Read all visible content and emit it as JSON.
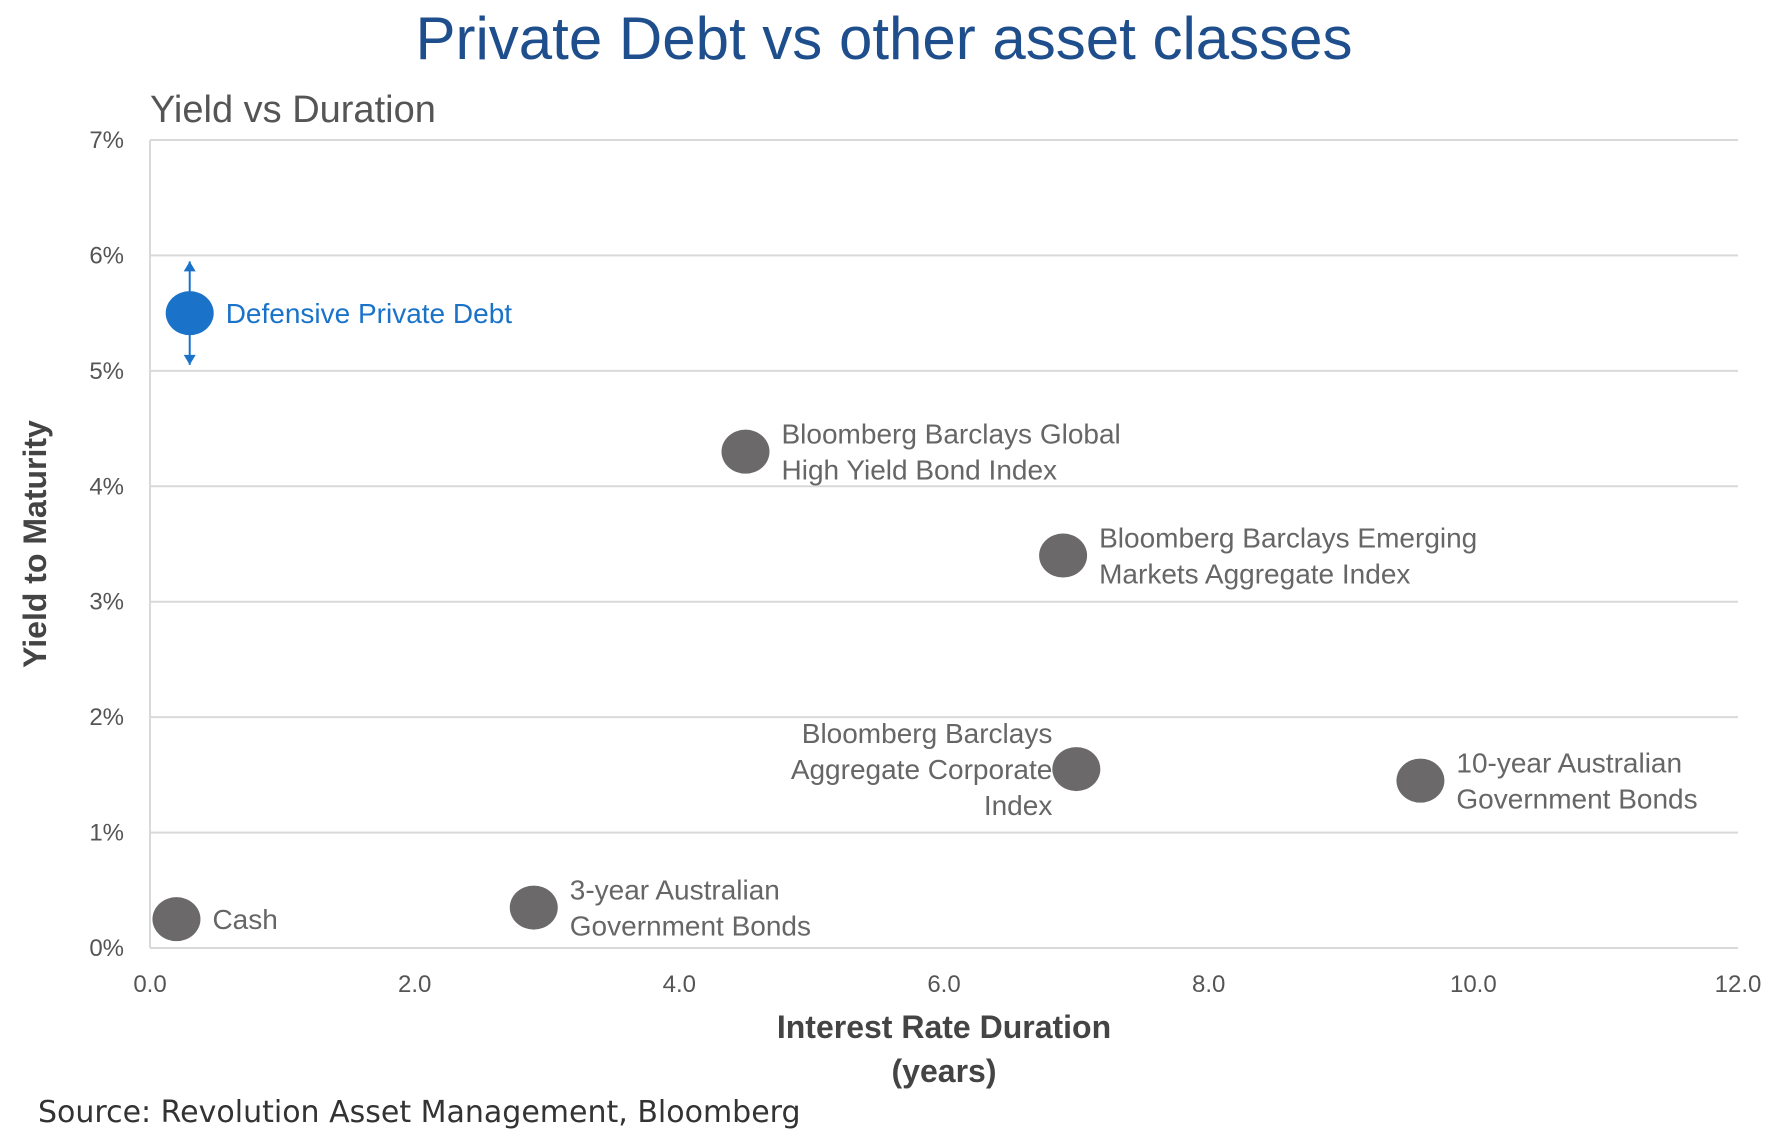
{
  "header": {
    "title": "Private Debt vs other asset classes"
  },
  "footer": {
    "source": "Source: Revolution Asset Management, Bloomberg"
  },
  "chart_data": {
    "type": "scatter",
    "title": "Private Debt vs other asset classes",
    "subtitle": "Yield vs Duration",
    "xlabel": [
      "Interest Rate Duration",
      "(years)"
    ],
    "ylabel": "Yield to Maturity",
    "xlim": [
      0,
      12
    ],
    "ylim": [
      0,
      7
    ],
    "xticks": [
      0,
      2,
      4,
      6,
      8,
      10,
      12
    ],
    "xtick_labels": [
      "0.0",
      "2.0",
      "4.0",
      "6.0",
      "8.0",
      "10.0",
      "12.0"
    ],
    "yticks": [
      0,
      1,
      2,
      3,
      4,
      5,
      6,
      7
    ],
    "ytick_labels": [
      "0%",
      "1%",
      "2%",
      "3%",
      "4%",
      "5%",
      "6%",
      "7%"
    ],
    "grid": "horizontal",
    "legend": "none",
    "colors": {
      "highlight": "#1a73c8",
      "default": "#6b6969",
      "grid": "#d9d9d9"
    },
    "points": [
      {
        "name": "defensive-private-debt",
        "label": [
          "Defensive Private Debt"
        ],
        "x": 0.3,
        "y": 5.5,
        "highlight": true,
        "range": [
          5.0,
          6.0
        ]
      },
      {
        "name": "global-high-yield",
        "label": [
          "Bloomberg Barclays Global",
          "High Yield Bond Index"
        ],
        "x": 4.5,
        "y": 4.3
      },
      {
        "name": "emerging-markets",
        "label": [
          "Bloomberg Barclays Emerging",
          "Markets Aggregate Index"
        ],
        "x": 6.9,
        "y": 3.4
      },
      {
        "name": "aggregate-corporate",
        "label": [
          "Bloomberg Barclays",
          "Aggregate Corporate",
          "Index"
        ],
        "x": 7.0,
        "y": 1.55,
        "label_side": "left"
      },
      {
        "name": "10yr-aus-gov",
        "label": [
          "10-year Australian",
          "Government Bonds"
        ],
        "x": 9.6,
        "y": 1.45
      },
      {
        "name": "3yr-aus-gov",
        "label": [
          "3-year Australian",
          "Government Bonds"
        ],
        "x": 2.9,
        "y": 0.35
      },
      {
        "name": "cash",
        "label": [
          "Cash"
        ],
        "x": 0.2,
        "y": 0.25
      }
    ]
  }
}
